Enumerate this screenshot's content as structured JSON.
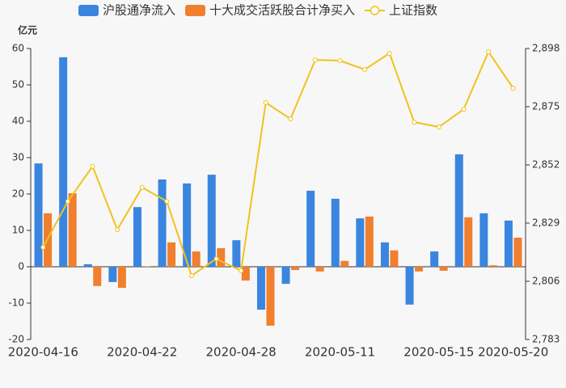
{
  "chart_data": {
    "type": "bar-line",
    "y_label": "亿元",
    "categories": [
      "2020-04-16",
      null,
      null,
      null,
      "2020-04-22",
      null,
      null,
      null,
      "2020-04-28",
      null,
      null,
      null,
      "2020-05-11",
      null,
      null,
      null,
      "2020-05-15",
      null,
      null,
      "2020-05-20"
    ],
    "series": [
      {
        "name": "沪股通净流入",
        "color": "#3a85e0",
        "type": "bar",
        "values": [
          28.4,
          57.6,
          0.7,
          -4.2,
          16.4,
          24.0,
          22.9,
          25.3,
          7.3,
          -11.8,
          -4.7,
          20.9,
          18.7,
          13.3,
          6.7,
          -10.4,
          4.2,
          30.9,
          14.7,
          12.7
        ]
      },
      {
        "name": "十大成交活跃股合计净买入",
        "color": "#f07f2e",
        "type": "bar",
        "values": [
          14.7,
          20.2,
          -5.3,
          -5.8,
          0.1,
          6.7,
          4.2,
          5.1,
          -3.8,
          -16.2,
          -0.9,
          -1.3,
          1.6,
          13.8,
          4.5,
          -1.3,
          -1.1,
          13.6,
          0.4,
          8.0
        ]
      },
      {
        "name": "上证指数",
        "color": "#f2c21b",
        "type": "line",
        "axis": "y2",
        "values": [
          2819.4,
          2837.6,
          2851.4,
          2826.4,
          2843.1,
          2837.6,
          2808.2,
          2814.9,
          2810.2,
          2876.6,
          2870.2,
          2893.5,
          2893.2,
          2889.7,
          2896.1,
          2868.9,
          2867.0,
          2874.0,
          2896.7,
          2882.3
        ]
      }
    ],
    "ylim": [
      -20,
      60
    ],
    "yticks": [
      -20,
      -10,
      0,
      10,
      20,
      30,
      40,
      50,
      60
    ],
    "y2lim": [
      2783,
      2898
    ],
    "y2ticks": [
      {
        "value": 2783,
        "label": "2,783"
      },
      {
        "value": 2806,
        "label": "2,806"
      },
      {
        "value": 2829,
        "label": "2,829"
      },
      {
        "value": 2852,
        "label": "2,852"
      },
      {
        "value": 2875,
        "label": "2,875"
      },
      {
        "value": 2898,
        "label": "2,898"
      }
    ],
    "grid": false,
    "legend": "top"
  }
}
